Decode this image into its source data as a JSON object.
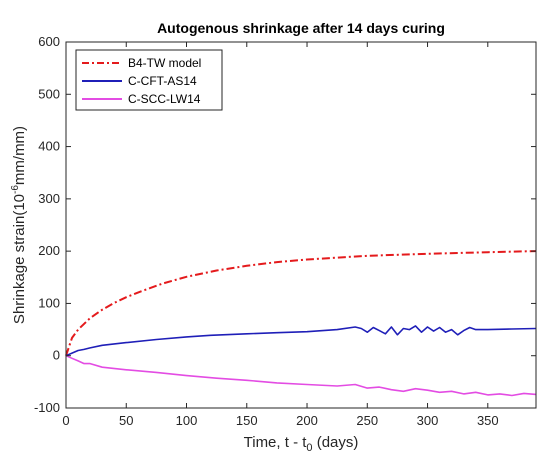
{
  "chart_data": {
    "type": "line",
    "title": "Autogenous shrinkage after 14 days curing",
    "xlabel": {
      "main": "Time, t - t",
      "sub": "0",
      "tail": " (days)"
    },
    "ylabel": {
      "main": "Shrinkage strain(10",
      "sup": "-6",
      "tail": "mm/mm)"
    },
    "xlim": [
      0,
      390
    ],
    "ylim": [
      -100,
      600
    ],
    "xticks": [
      0,
      50,
      100,
      150,
      200,
      250,
      300,
      350
    ],
    "yticks": [
      -100,
      0,
      100,
      200,
      300,
      400,
      500,
      600
    ],
    "legend_position": "top-left",
    "series": [
      {
        "name": "B4-TW model",
        "color": "#e41a1c",
        "style": "dash-dot",
        "x": [
          0,
          5,
          10,
          20,
          30,
          40,
          50,
          60,
          80,
          100,
          125,
          150,
          175,
          200,
          250,
          300,
          350,
          390
        ],
        "y": [
          0,
          34,
          50,
          72,
          88,
          101,
          112,
          121,
          138,
          151,
          163,
          172,
          179,
          184,
          191,
          195,
          198,
          200
        ]
      },
      {
        "name": "C-CFT-AS14",
        "color": "#1f1fb8",
        "style": "solid",
        "x": [
          0,
          5,
          10,
          15,
          20,
          30,
          50,
          75,
          100,
          120,
          150,
          175,
          200,
          225,
          240,
          245,
          250,
          255,
          260,
          265,
          270,
          275,
          280,
          285,
          290,
          295,
          300,
          305,
          310,
          315,
          320,
          325,
          330,
          335,
          340,
          350,
          370,
          390
        ],
        "y": [
          0,
          5,
          10,
          12,
          15,
          20,
          25,
          31,
          36,
          39,
          42,
          44,
          46,
          50,
          55,
          52,
          45,
          54,
          48,
          42,
          55,
          40,
          52,
          50,
          57,
          45,
          55,
          47,
          54,
          45,
          50,
          40,
          48,
          54,
          50,
          50,
          51,
          52
        ]
      },
      {
        "name": "C-SCC-LW14",
        "color": "#e34ce3",
        "style": "solid",
        "x": [
          0,
          5,
          10,
          15,
          20,
          30,
          50,
          75,
          100,
          125,
          150,
          175,
          200,
          225,
          240,
          250,
          260,
          270,
          280,
          290,
          300,
          310,
          320,
          330,
          340,
          350,
          360,
          370,
          380,
          390
        ],
        "y": [
          0,
          -5,
          -10,
          -15,
          -15,
          -22,
          -27,
          -32,
          -38,
          -43,
          -47,
          -52,
          -55,
          -58,
          -55,
          -62,
          -60,
          -65,
          -68,
          -63,
          -66,
          -70,
          -68,
          -73,
          -70,
          -75,
          -73,
          -76,
          -72,
          -74
        ]
      }
    ]
  }
}
